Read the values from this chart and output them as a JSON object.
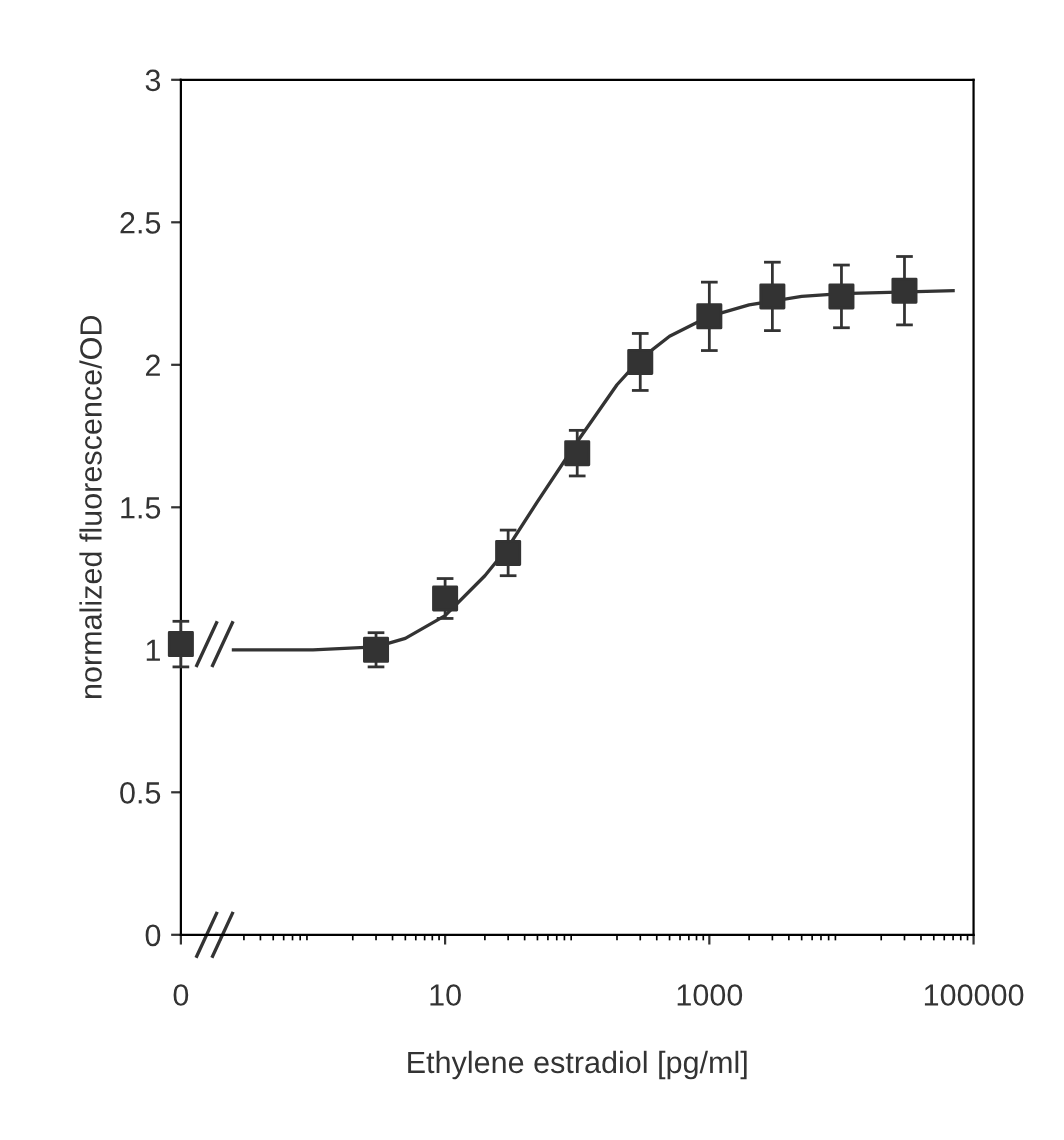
{
  "chart_data": {
    "type": "scatter",
    "xlabel": "Ethylene estradiol [pg/ml]",
    "ylabel": "normalized fluorescence/OD",
    "log": "x",
    "xlim": [
      0.1,
      100000
    ],
    "xticks": [
      {
        "value": 0.1,
        "label": "0"
      },
      10,
      1000,
      100000
    ],
    "ylim": [
      0,
      3
    ],
    "yticks": [
      0,
      0.5,
      1,
      1.5,
      2,
      2.5,
      3
    ],
    "grid": false,
    "legend": false,
    "series": [
      {
        "marker": "square",
        "color": "#333333",
        "x": [
          0.1,
          3,
          10,
          30,
          100,
          300,
          1000,
          3000,
          10000,
          30000
        ],
        "values": [
          1.02,
          1.0,
          1.18,
          1.34,
          1.69,
          2.01,
          2.17,
          2.24,
          2.24,
          2.26
        ],
        "errors": [
          0.08,
          0.06,
          0.07,
          0.08,
          0.08,
          0.1,
          0.12,
          0.12,
          0.11,
          0.12
        ]
      },
      {
        "type": "line",
        "marker": "none",
        "color": "#333333",
        "line_style": "solid",
        "x": [
          0.25,
          1,
          3,
          5,
          10,
          20,
          30,
          50,
          100,
          200,
          300,
          500,
          1000,
          2000,
          5000,
          10000,
          70000
        ],
        "values": [
          1.0,
          1.0,
          1.01,
          1.04,
          1.12,
          1.26,
          1.36,
          1.52,
          1.73,
          1.93,
          2.02,
          2.1,
          2.17,
          2.21,
          2.24,
          2.25,
          2.26
        ]
      }
    ]
  }
}
